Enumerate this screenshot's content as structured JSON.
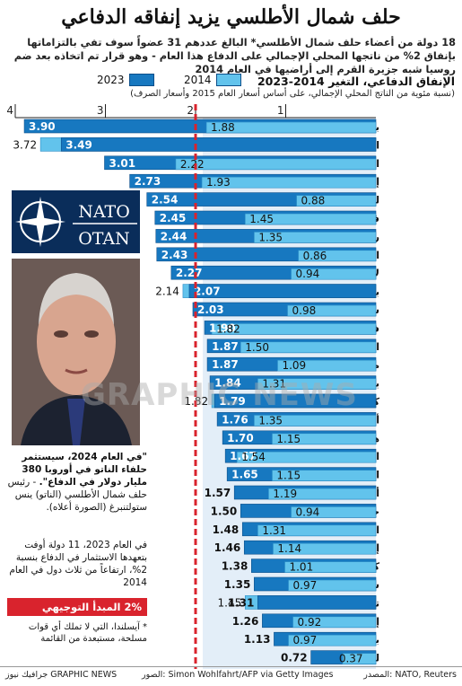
{
  "title": "حلف شمال الأطلسي يزيد إنفاقه الدفاعي",
  "intro": "18 دولة من أعضاء حلف شمال الأطلسي* البالغ عددهم 31 عضواً سوف تفي بالتزاماتها بإنفاق 2% من ناتجها المحلي الإجمالي على الدفاع هذا العام - وهو قرار تم اتخاذه بعد ضم روسيا شبه جزيرة القرم إلى أراضيها في العام 2014",
  "legend": {
    "y2023": "2023",
    "y2014": "2014"
  },
  "colors": {
    "bar2023": "#1778c0",
    "bar2014": "#62c3ec",
    "band": "#e3eef8",
    "target": "#d9232d"
  },
  "chart_data": {
    "type": "bar",
    "orientation": "horizontal",
    "title": "الإنفاق الدفاعي، التغير 2014-2023",
    "subtitle": "(نسبة مئوية من الناتج المحلي الإجمالي، على أساس أسعار العام 2015 وأسعار الصرف)",
    "xlim": [
      0,
      4
    ],
    "ticks": [
      "4",
      "3",
      "2",
      "1"
    ],
    "target_line": 2,
    "series": [
      {
        "name": "2023"
      },
      {
        "name": "2014"
      }
    ],
    "categories": [
      "بولندا",
      "الولايات المتحدة",
      "اليونان",
      "إستونيا",
      "ليتوانيا",
      "فنلندا",
      "رومانيا",
      "المجر",
      "لاتفيا",
      "بريطانيا",
      "سلوفاكيا",
      "فرنسا",
      "الجبل الأسود",
      "مقدونيا الشمالية",
      "بلغاريا",
      "كرواتيا",
      "ألبانيا",
      "هولندا",
      "النرويج",
      "الدنمارك",
      "ألمانيا",
      "جمهورية التشيك",
      "البرتغال",
      "إيطاليا",
      "كندا",
      "سلوفينيا",
      "تركيا",
      "إسبانيا",
      "بلجيكا",
      "لوكسمبورغ"
    ],
    "values_2023": [
      3.9,
      3.49,
      3.01,
      2.73,
      2.54,
      2.45,
      2.44,
      2.43,
      2.27,
      2.07,
      2.03,
      1.9,
      1.87,
      1.87,
      1.84,
      1.79,
      1.76,
      1.7,
      1.67,
      1.65,
      1.57,
      1.5,
      1.48,
      1.46,
      1.38,
      1.35,
      1.31,
      1.26,
      1.13,
      0.72
    ],
    "values_2014": [
      1.88,
      3.72,
      2.22,
      1.93,
      0.88,
      1.45,
      1.35,
      0.86,
      0.94,
      2.14,
      0.98,
      1.82,
      1.5,
      1.09,
      1.31,
      1.82,
      1.35,
      1.15,
      1.54,
      1.15,
      1.19,
      0.94,
      1.31,
      1.14,
      1.01,
      0.97,
      1.45,
      0.92,
      0.97,
      0.37
    ]
  },
  "logo": {
    "nato": "NATO",
    "otan": "OTAN"
  },
  "quote": {
    "text1": "\"في العام 2024، سيستثمر حلفاء الناتو في أوروبا 380 مليار دولار في الدفاع\".",
    "text2": "- رئيس حلف شمال الأطلسي (الناتو) ينس ستولتنبرغ (الصورة أعلاه)."
  },
  "note2023": "في العام 2023، 11 دولة أوفت بتعهدها الاستثمار في الدفاع بنسبة 2%، ارتفاعاً من ثلاث دول في العام 2014",
  "target_label": "2% المبدأ التوجيهي",
  "footnote": "* آيسلندا، التي لا تملك أي قوات مسلحة، مستبعدة من القائمة",
  "footer": {
    "credit": "جرافيك نيوز GRAPHIC NEWS",
    "photo": "الصور: Simon Wohlfahrt/AFP via Getty Images",
    "source": "المصدر: NATO, Reuters"
  },
  "watermark": "GRAPHIC NEWS"
}
